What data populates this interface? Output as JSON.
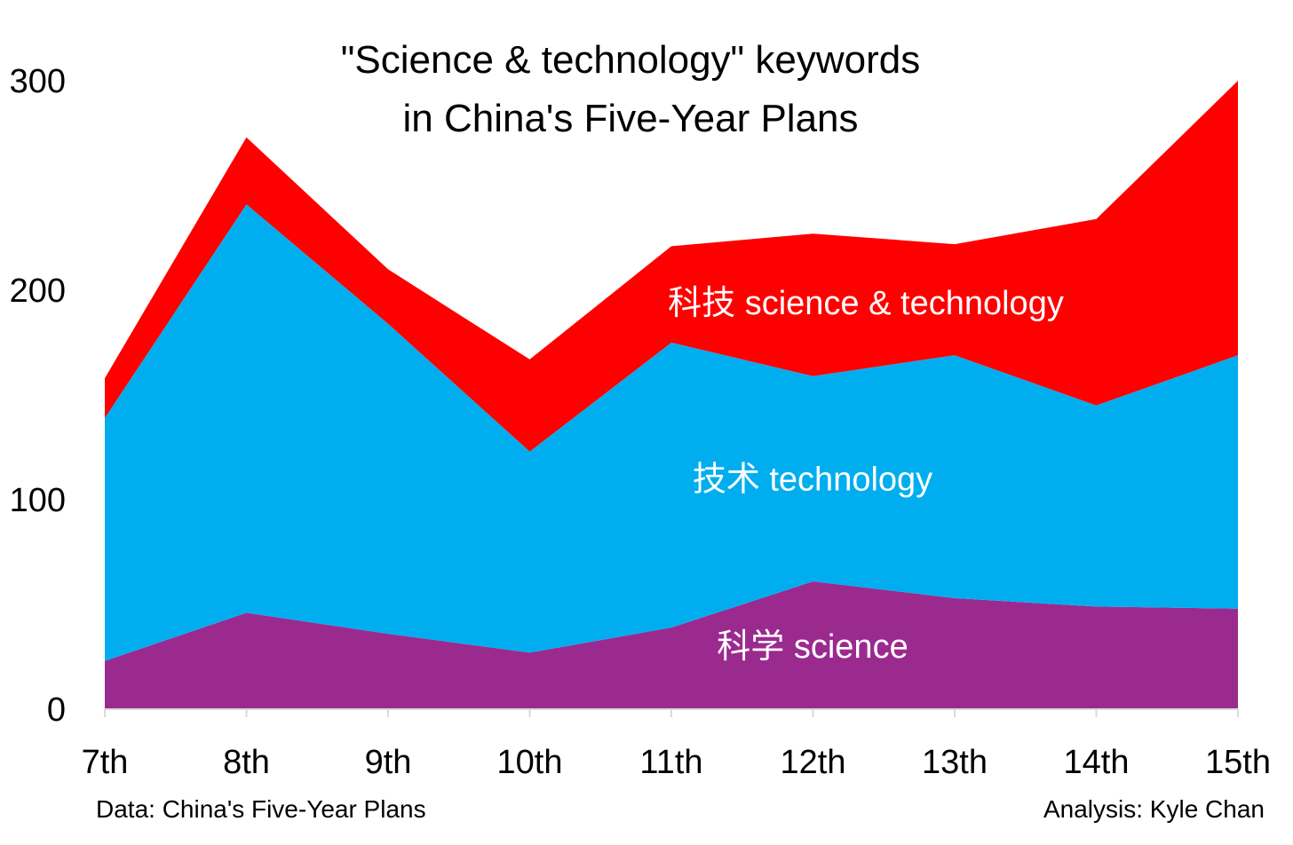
{
  "chart_data": {
    "type": "area",
    "stacked": true,
    "title": [
      "\"Science & technology\" keywords",
      "in China's Five-Year Plans"
    ],
    "categories": [
      "7th",
      "8th",
      "9th",
      "10th",
      "11th",
      "12th",
      "13th",
      "14th",
      "15th"
    ],
    "ylim": [
      0,
      300
    ],
    "yticks": [
      0,
      100,
      200,
      300
    ],
    "grid": false,
    "series": [
      {
        "name": "科学 science",
        "color": "#9b2a8f",
        "values": [
          23,
          46,
          36,
          27,
          39,
          61,
          53,
          49,
          48
        ]
      },
      {
        "name": "技术 technology",
        "color": "#00aeef",
        "values": [
          116,
          195,
          148,
          96,
          136,
          98,
          116,
          96,
          121
        ]
      },
      {
        "name": "科技 science & technology",
        "color": "#ff0000",
        "values": [
          19,
          32,
          26,
          44,
          46,
          68,
          53,
          89,
          131
        ]
      }
    ],
    "source_note": "Data: China's Five-Year Plans",
    "credit_note": "Analysis: Kyle Chan"
  }
}
